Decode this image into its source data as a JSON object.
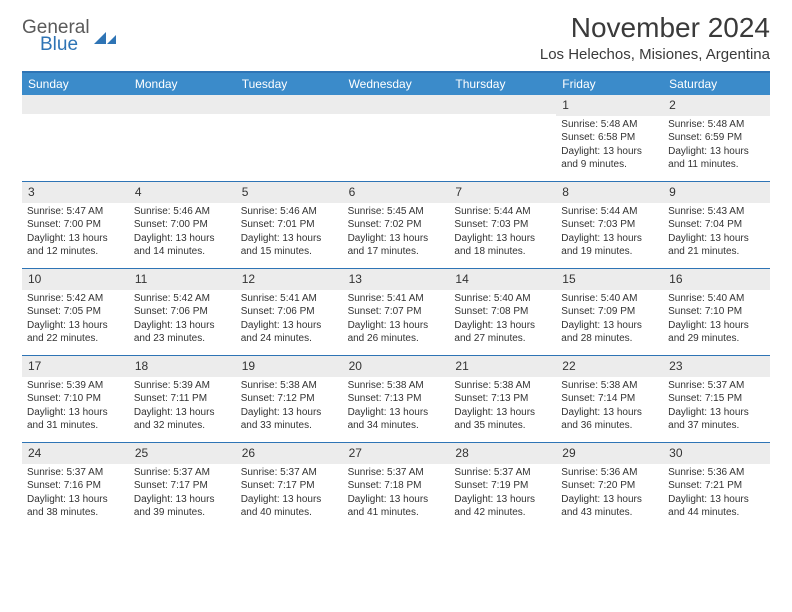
{
  "logo": {
    "general": "General",
    "blue": "Blue"
  },
  "title": "November 2024",
  "location": "Los Helechos, Misiones, Argentina",
  "colors": {
    "brand_blue": "#3b8bca",
    "dark_blue_line": "#2e74b5",
    "daynum_bg": "#ececec",
    "text": "#333333"
  },
  "daynames": [
    "Sunday",
    "Monday",
    "Tuesday",
    "Wednesday",
    "Thursday",
    "Friday",
    "Saturday"
  ],
  "pad_start": 5,
  "days": [
    {
      "n": 1,
      "sr": "5:48 AM",
      "ss": "6:58 PM",
      "dl": "13 hours and 9 minutes."
    },
    {
      "n": 2,
      "sr": "5:48 AM",
      "ss": "6:59 PM",
      "dl": "13 hours and 11 minutes."
    },
    {
      "n": 3,
      "sr": "5:47 AM",
      "ss": "7:00 PM",
      "dl": "13 hours and 12 minutes."
    },
    {
      "n": 4,
      "sr": "5:46 AM",
      "ss": "7:00 PM",
      "dl": "13 hours and 14 minutes."
    },
    {
      "n": 5,
      "sr": "5:46 AM",
      "ss": "7:01 PM",
      "dl": "13 hours and 15 minutes."
    },
    {
      "n": 6,
      "sr": "5:45 AM",
      "ss": "7:02 PM",
      "dl": "13 hours and 17 minutes."
    },
    {
      "n": 7,
      "sr": "5:44 AM",
      "ss": "7:03 PM",
      "dl": "13 hours and 18 minutes."
    },
    {
      "n": 8,
      "sr": "5:44 AM",
      "ss": "7:03 PM",
      "dl": "13 hours and 19 minutes."
    },
    {
      "n": 9,
      "sr": "5:43 AM",
      "ss": "7:04 PM",
      "dl": "13 hours and 21 minutes."
    },
    {
      "n": 10,
      "sr": "5:42 AM",
      "ss": "7:05 PM",
      "dl": "13 hours and 22 minutes."
    },
    {
      "n": 11,
      "sr": "5:42 AM",
      "ss": "7:06 PM",
      "dl": "13 hours and 23 minutes."
    },
    {
      "n": 12,
      "sr": "5:41 AM",
      "ss": "7:06 PM",
      "dl": "13 hours and 24 minutes."
    },
    {
      "n": 13,
      "sr": "5:41 AM",
      "ss": "7:07 PM",
      "dl": "13 hours and 26 minutes."
    },
    {
      "n": 14,
      "sr": "5:40 AM",
      "ss": "7:08 PM",
      "dl": "13 hours and 27 minutes."
    },
    {
      "n": 15,
      "sr": "5:40 AM",
      "ss": "7:09 PM",
      "dl": "13 hours and 28 minutes."
    },
    {
      "n": 16,
      "sr": "5:40 AM",
      "ss": "7:10 PM",
      "dl": "13 hours and 29 minutes."
    },
    {
      "n": 17,
      "sr": "5:39 AM",
      "ss": "7:10 PM",
      "dl": "13 hours and 31 minutes."
    },
    {
      "n": 18,
      "sr": "5:39 AM",
      "ss": "7:11 PM",
      "dl": "13 hours and 32 minutes."
    },
    {
      "n": 19,
      "sr": "5:38 AM",
      "ss": "7:12 PM",
      "dl": "13 hours and 33 minutes."
    },
    {
      "n": 20,
      "sr": "5:38 AM",
      "ss": "7:13 PM",
      "dl": "13 hours and 34 minutes."
    },
    {
      "n": 21,
      "sr": "5:38 AM",
      "ss": "7:13 PM",
      "dl": "13 hours and 35 minutes."
    },
    {
      "n": 22,
      "sr": "5:38 AM",
      "ss": "7:14 PM",
      "dl": "13 hours and 36 minutes."
    },
    {
      "n": 23,
      "sr": "5:37 AM",
      "ss": "7:15 PM",
      "dl": "13 hours and 37 minutes."
    },
    {
      "n": 24,
      "sr": "5:37 AM",
      "ss": "7:16 PM",
      "dl": "13 hours and 38 minutes."
    },
    {
      "n": 25,
      "sr": "5:37 AM",
      "ss": "7:17 PM",
      "dl": "13 hours and 39 minutes."
    },
    {
      "n": 26,
      "sr": "5:37 AM",
      "ss": "7:17 PM",
      "dl": "13 hours and 40 minutes."
    },
    {
      "n": 27,
      "sr": "5:37 AM",
      "ss": "7:18 PM",
      "dl": "13 hours and 41 minutes."
    },
    {
      "n": 28,
      "sr": "5:37 AM",
      "ss": "7:19 PM",
      "dl": "13 hours and 42 minutes."
    },
    {
      "n": 29,
      "sr": "5:36 AM",
      "ss": "7:20 PM",
      "dl": "13 hours and 43 minutes."
    },
    {
      "n": 30,
      "sr": "5:36 AM",
      "ss": "7:21 PM",
      "dl": "13 hours and 44 minutes."
    }
  ],
  "labels": {
    "sunrise": "Sunrise:",
    "sunset": "Sunset:",
    "daylight": "Daylight:"
  }
}
